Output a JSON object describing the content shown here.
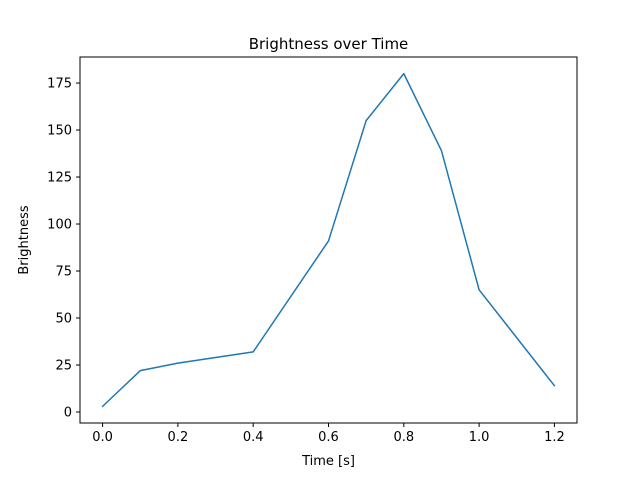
{
  "figure": {
    "background": "#ffffff"
  },
  "chart_data": {
    "type": "line",
    "title": "Brightness over Time",
    "xlabel": "Time [s]",
    "ylabel": "Brightness",
    "x": [
      0.0,
      0.1,
      0.2,
      0.4,
      0.6,
      0.7,
      0.8,
      0.9,
      1.0,
      1.2
    ],
    "y": [
      3,
      22,
      26,
      32,
      91,
      155,
      180,
      139,
      65,
      14
    ],
    "xlim": [
      -0.06,
      1.26
    ],
    "ylim": [
      -5.85,
      188.85
    ],
    "xticks": [
      0.0,
      0.2,
      0.4,
      0.6,
      0.8,
      1.0,
      1.2
    ],
    "xtick_labels": [
      "0.0",
      "0.2",
      "0.4",
      "0.6",
      "0.8",
      "1.0",
      "1.2"
    ],
    "yticks": [
      0,
      25,
      50,
      75,
      100,
      125,
      150,
      175
    ],
    "ytick_labels": [
      "0",
      "25",
      "50",
      "75",
      "100",
      "125",
      "150",
      "175"
    ],
    "grid": false,
    "legend": null,
    "line_color": "#1f77b4",
    "line_width": 1.5,
    "spine_color": "#000000",
    "text_color": "#000000"
  }
}
